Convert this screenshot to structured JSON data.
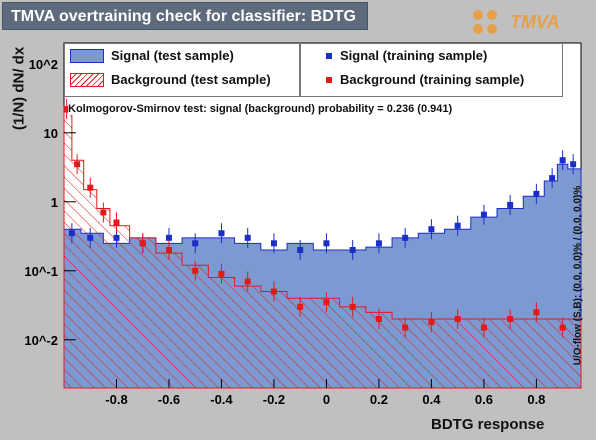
{
  "header": {
    "title": "TMVA overtraining check for classifier: BDTG",
    "logo_text": "TMVA"
  },
  "legend": {
    "signal_test": "Signal (test sample)",
    "background_test": "Background (test sample)",
    "signal_train": "Signal (training sample)",
    "background_train": "Background (training sample)"
  },
  "annotations": {
    "ks_test": "Kolmogorov-Smirnov test: signal (background) probability = 0.236 (0.941)",
    "overflow": "U/O-flow (S,B): (0.0, 0.0)% / (0.0, 0.0)%"
  },
  "colors": {
    "signal_fill": "#7d99d1",
    "signal_line": "#1a2ec8",
    "background": "#e31a1a",
    "frame_bg": "#c0c0c0",
    "title_bg": "#5d6b7d"
  },
  "chart_data": {
    "type": "histogram",
    "title": "TMVA overtraining check for classifier: BDTG",
    "xlabel": "BDTG response",
    "ylabel": "(1/N) dN/ dx",
    "xlim": [
      -1.0,
      0.97
    ],
    "ylim": [
      0.002,
      200
    ],
    "y_scale": "log",
    "x_ticks": [
      "-0.8",
      "-0.6",
      "-0.4",
      "-0.2",
      "0",
      "0.2",
      "0.4",
      "0.6",
      "0.8"
    ],
    "y_ticks": [
      "10^-2",
      "10^-1",
      "1",
      "10",
      "10^2"
    ],
    "legend_placement": "top",
    "series": [
      {
        "name": "Signal (test sample)",
        "style": "filled histogram",
        "x": [
          -0.97,
          -0.9,
          -0.8,
          -0.7,
          -0.6,
          -0.5,
          -0.4,
          -0.3,
          -0.2,
          -0.1,
          0.0,
          0.1,
          0.2,
          0.3,
          0.4,
          0.5,
          0.6,
          0.7,
          0.8,
          0.86,
          0.9,
          0.94
        ],
        "y": [
          0.4,
          0.35,
          0.25,
          0.3,
          0.25,
          0.3,
          0.3,
          0.25,
          0.2,
          0.25,
          0.2,
          0.2,
          0.22,
          0.3,
          0.35,
          0.4,
          0.6,
          0.8,
          1.2,
          2.0,
          3.5,
          3.0
        ]
      },
      {
        "name": "Background (test sample)",
        "style": "hatched histogram",
        "x": [
          -0.99,
          -0.95,
          -0.9,
          -0.85,
          -0.8,
          -0.7,
          -0.6,
          -0.5,
          -0.4,
          -0.3,
          -0.2,
          -0.1,
          0.0,
          0.1,
          0.2,
          0.3,
          0.4,
          0.5,
          0.6,
          0.7,
          0.8,
          0.9
        ],
        "y": [
          20,
          4.0,
          1.5,
          0.8,
          0.45,
          0.3,
          0.18,
          0.12,
          0.08,
          0.06,
          0.05,
          0.04,
          0.04,
          0.03,
          0.025,
          0.02,
          0.02,
          0.02,
          0.02,
          0.02,
          0.02,
          0.02
        ]
      },
      {
        "name": "Signal (training sample)",
        "style": "markers with error bars",
        "x": [
          -0.97,
          -0.9,
          -0.8,
          -0.7,
          -0.6,
          -0.5,
          -0.4,
          -0.3,
          -0.2,
          -0.1,
          0.0,
          0.1,
          0.2,
          0.3,
          0.4,
          0.5,
          0.6,
          0.7,
          0.8,
          0.86,
          0.9,
          0.94
        ],
        "y": [
          0.35,
          0.3,
          0.3,
          0.25,
          0.3,
          0.25,
          0.35,
          0.3,
          0.25,
          0.2,
          0.25,
          0.2,
          0.25,
          0.3,
          0.4,
          0.45,
          0.65,
          0.9,
          1.3,
          2.2,
          4.0,
          3.5
        ]
      },
      {
        "name": "Background (training sample)",
        "style": "markers with error bars",
        "x": [
          -0.99,
          -0.95,
          -0.9,
          -0.85,
          -0.8,
          -0.7,
          -0.6,
          -0.5,
          -0.4,
          -0.3,
          -0.2,
          -0.1,
          0.0,
          0.1,
          0.2,
          0.3,
          0.4,
          0.5,
          0.6,
          0.7,
          0.8,
          0.9
        ],
        "y": [
          22,
          3.5,
          1.6,
          0.7,
          0.5,
          0.25,
          0.2,
          0.1,
          0.09,
          0.07,
          0.05,
          0.03,
          0.035,
          0.03,
          0.02,
          0.015,
          0.018,
          0.02,
          0.015,
          0.02,
          0.025,
          0.015
        ]
      }
    ]
  }
}
